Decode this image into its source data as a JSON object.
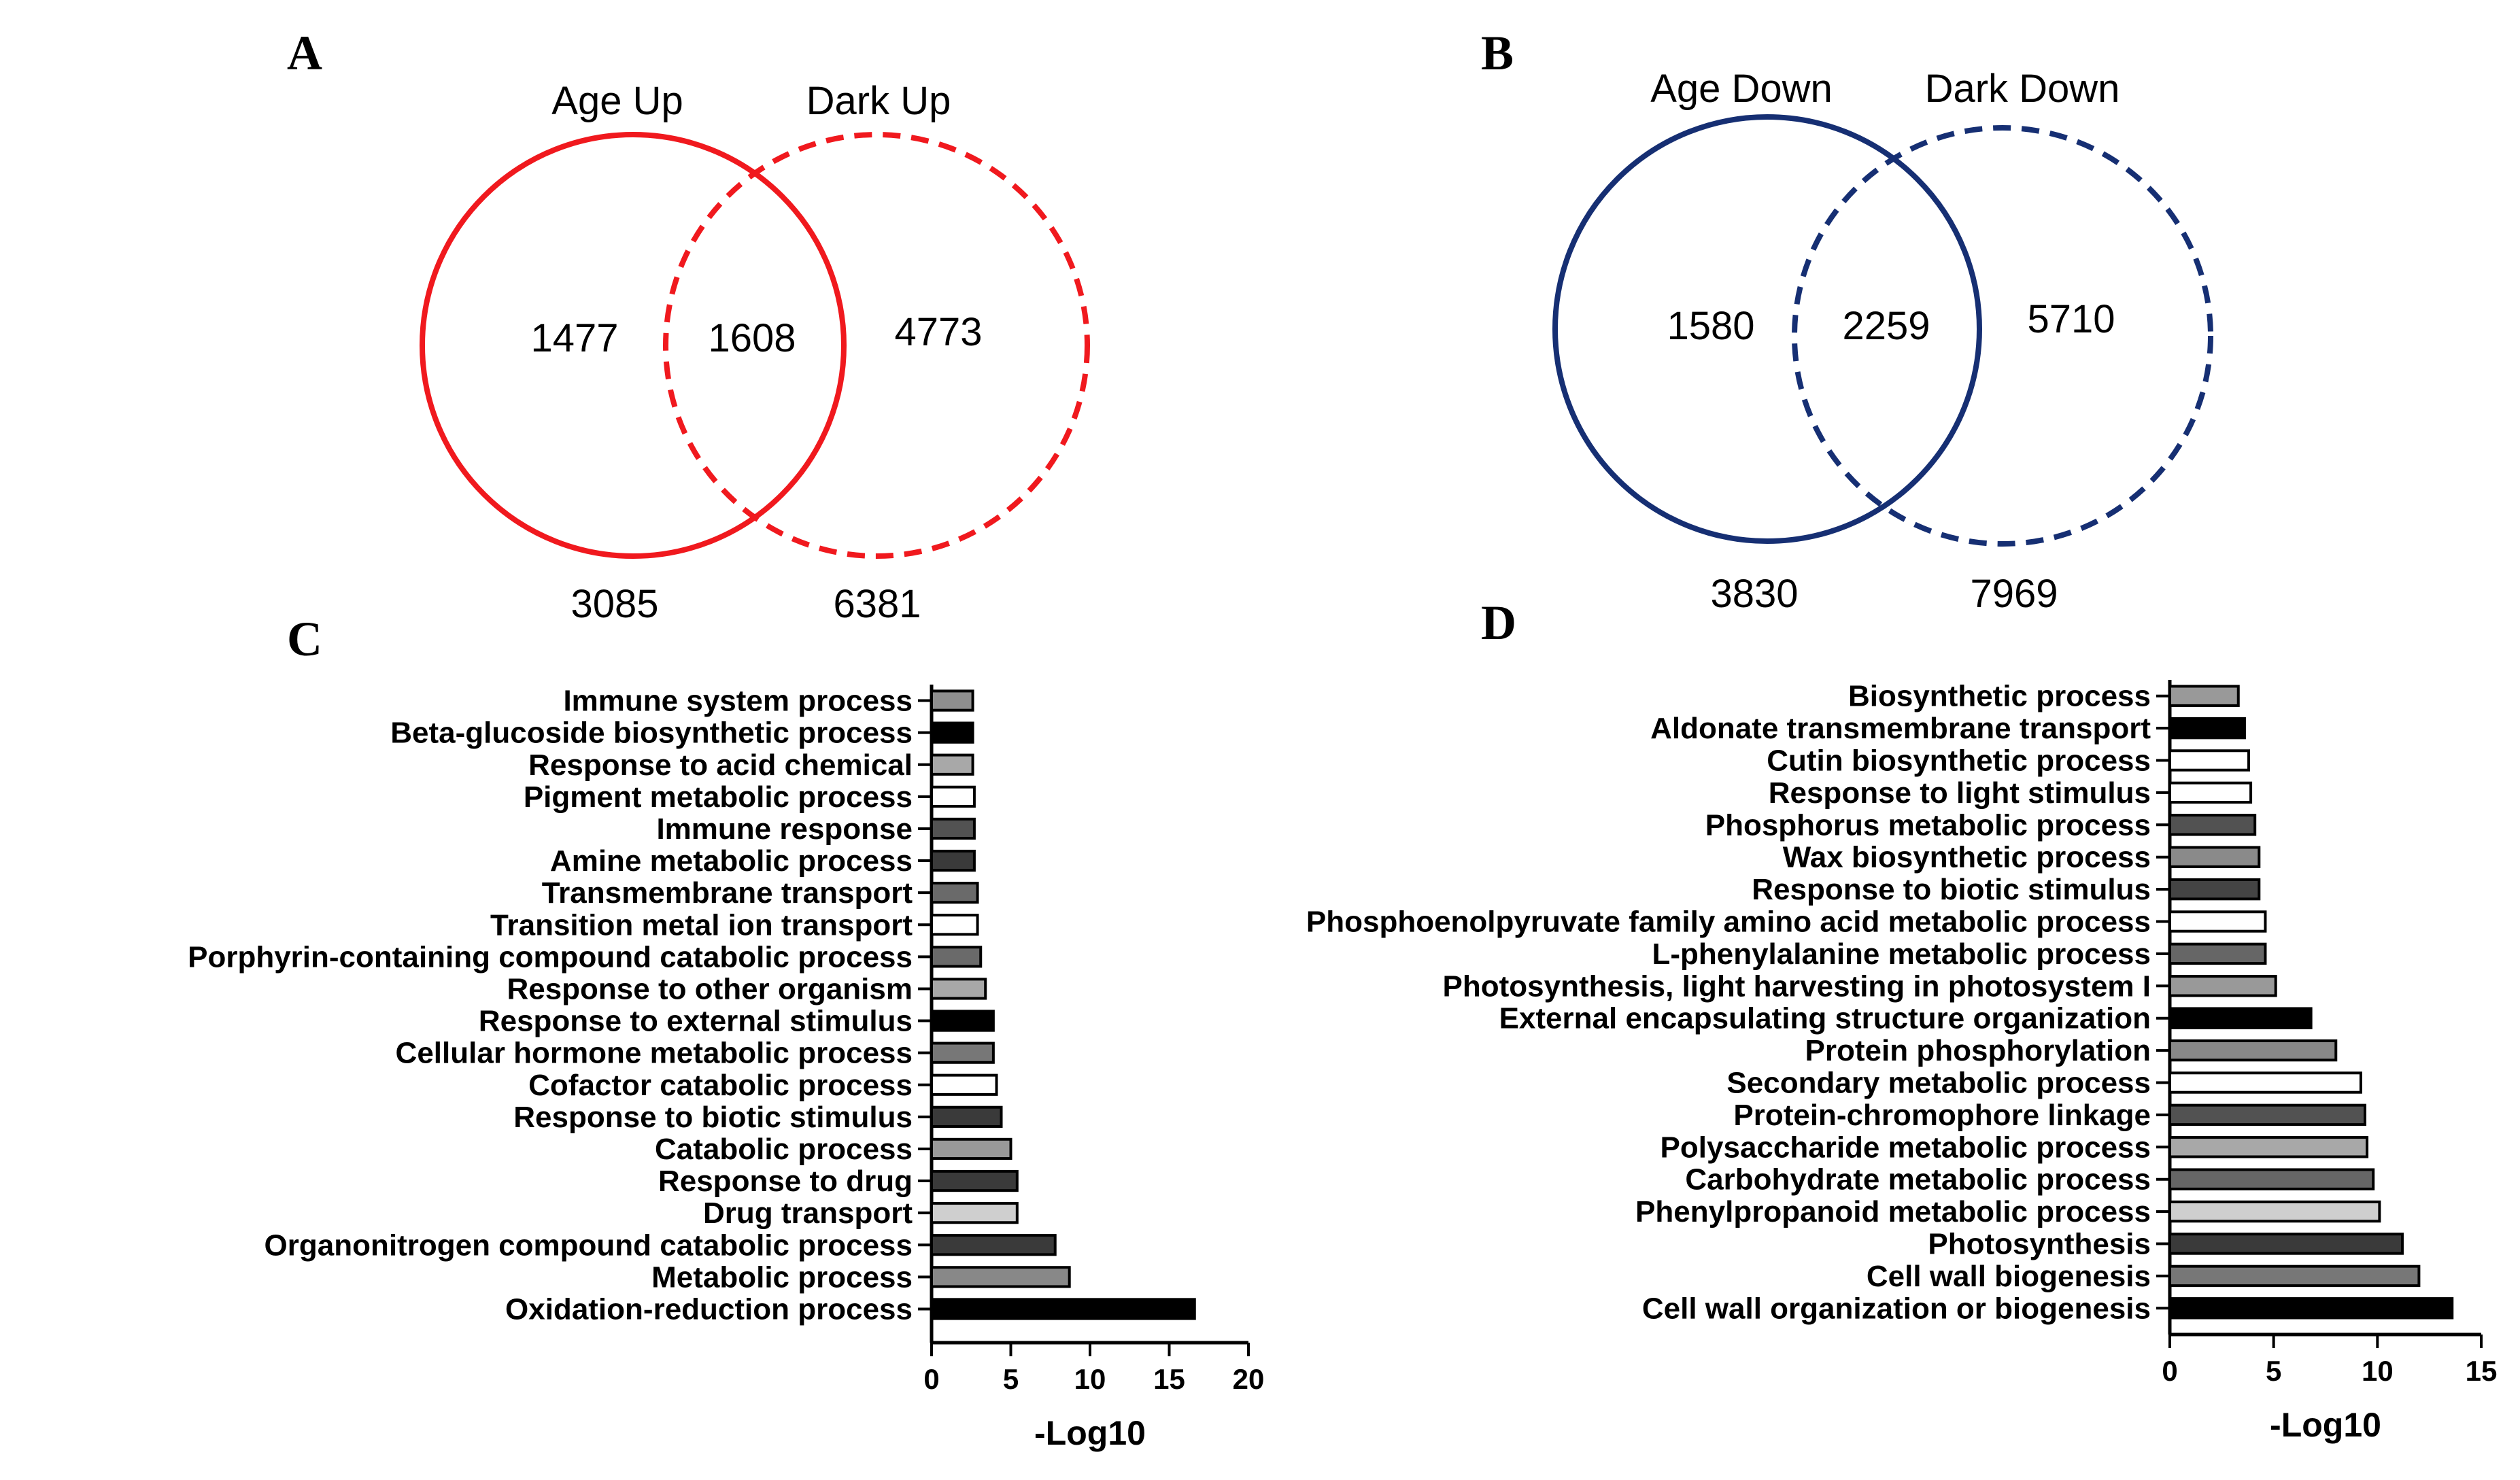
{
  "panels": {
    "A": {
      "label": "A",
      "type": "venn",
      "sets": [
        "Age Up",
        "Dark Up"
      ],
      "only_left": "1477",
      "intersection": "1608",
      "only_right": "4773",
      "total_left": "3085",
      "total_right": "6381",
      "colors": {
        "left": "#f0191e",
        "right": "#f0191e"
      }
    },
    "B": {
      "label": "B",
      "type": "venn",
      "sets": [
        "Age Down",
        "Dark Down"
      ],
      "only_left": "1580",
      "intersection": "2259",
      "only_right": "5710",
      "total_left": "3830",
      "total_right": "7969",
      "colors": {
        "left": "#162f73",
        "right": "#162f73"
      }
    },
    "C": {
      "label": "C"
    },
    "D": {
      "label": "D"
    }
  },
  "chart_data": [
    {
      "panel": "C",
      "type": "bar",
      "orientation": "horizontal",
      "xlabel": "-Log10",
      "xlim": [
        0,
        20
      ],
      "xticks": [
        0,
        5,
        10,
        15,
        20
      ],
      "categories": [
        "Immune system process",
        "Beta-glucoside biosynthetic process",
        "Response to acid chemical",
        "Pigment metabolic process",
        "Immune response",
        "Amine metabolic process",
        "Transmembrane transport",
        "Transition metal ion transport",
        "Porphyrin-containing compound catabolic process",
        "Response to other organism",
        "Response to external stimulus",
        "Cellular hormone metabolic process",
        "Cofactor catabolic process",
        "Response to biotic stimulus",
        "Catabolic process",
        "Response to drug",
        "Drug transport",
        "Organonitrogen compound catabolic process",
        "Metabolic process",
        "Oxidation-reduction process"
      ],
      "values": [
        2.6,
        2.6,
        2.6,
        2.7,
        2.7,
        2.7,
        2.9,
        2.9,
        3.1,
        3.4,
        3.9,
        3.9,
        4.1,
        4.4,
        5.0,
        5.4,
        5.4,
        7.8,
        8.7,
        16.6
      ],
      "fills": [
        "#8f8f8f",
        "#000000",
        "#a8a8a8",
        "#ffffff",
        "#525252",
        "#3a3a3a",
        "#6a6a6a",
        "#ffffff",
        "#6a6a6a",
        "#a8a8a8",
        "#000000",
        "#777777",
        "#ffffff",
        "#3a3a3a",
        "#999999",
        "#3a3a3a",
        "#cfcfcf",
        "#3a3a3a",
        "#888888",
        "#000000"
      ]
    },
    {
      "panel": "D",
      "type": "bar",
      "orientation": "horizontal",
      "xlabel": "-Log10",
      "xlim": [
        0,
        15
      ],
      "xticks": [
        0,
        5,
        10,
        15
      ],
      "categories": [
        "Biosynthetic process",
        "Aldonate transmembrane transport",
        "Cutin biosynthetic process",
        "Response to light stimulus",
        "Phosphorus metabolic process",
        "Wax biosynthetic process",
        "Response to biotic stimulus",
        "Phosphoenolpyruvate family amino acid metabolic process",
        "L-phenylalanine metabolic process",
        "Photosynthesis, light harvesting in photosystem I",
        "External encapsulating structure organization",
        "Protein phosphorylation",
        "Secondary metabolic process",
        "Protein-chromophore linkage",
        "Polysaccharide metabolic process",
        "Carbohydrate metabolic process",
        "Phenylpropanoid metabolic process",
        "Photosynthesis",
        "Cell wall biogenesis",
        "Cell wall organization or biogenesis"
      ],
      "values": [
        3.3,
        3.6,
        3.8,
        3.9,
        4.1,
        4.3,
        4.3,
        4.6,
        4.6,
        5.1,
        6.8,
        8.0,
        9.2,
        9.4,
        9.5,
        9.8,
        10.1,
        11.2,
        12.0,
        13.6
      ],
      "fills": [
        "#999999",
        "#000000",
        "#ffffff",
        "#ffffff",
        "#525252",
        "#8a8a8a",
        "#444444",
        "#ffffff",
        "#666666",
        "#999999",
        "#000000",
        "#888888",
        "#ffffff",
        "#525252",
        "#a8a8a8",
        "#666666",
        "#cfcfcf",
        "#3a3a3a",
        "#777777",
        "#000000"
      ]
    }
  ]
}
